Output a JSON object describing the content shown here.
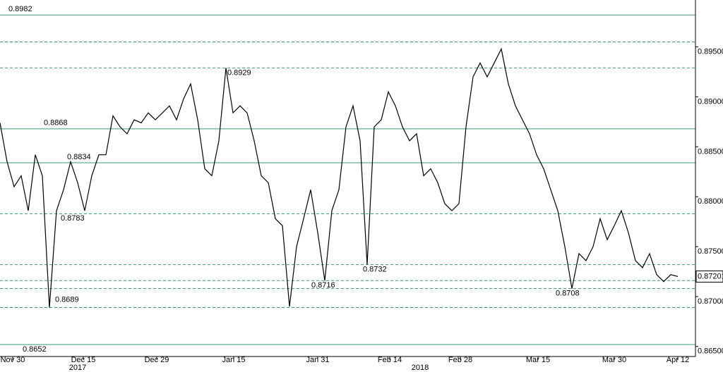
{
  "chart_data": {
    "type": "line",
    "series": [
      {
        "color": "#000000",
        "values": [
          0.8874,
          0.8835,
          0.881,
          0.8821,
          0.8786,
          0.8842,
          0.8821,
          0.8689,
          0.8786,
          0.8807,
          0.8835,
          0.8814,
          0.8786,
          0.8821,
          0.8842,
          0.8842,
          0.8881,
          0.887,
          0.8863,
          0.8877,
          0.8874,
          0.8884,
          0.8877,
          0.8884,
          0.8891,
          0.8877,
          0.8898,
          0.8913,
          0.8877,
          0.8828,
          0.8821,
          0.8856,
          0.8929,
          0.8884,
          0.8891,
          0.8884,
          0.8856,
          0.8821,
          0.8814,
          0.8778,
          0.8771,
          0.869,
          0.875,
          0.8778,
          0.8807,
          0.8764,
          0.8716,
          0.8786,
          0.8807,
          0.887,
          0.8891,
          0.8856,
          0.8732,
          0.887,
          0.8877,
          0.8905,
          0.8891,
          0.887,
          0.8856,
          0.8863,
          0.8821,
          0.8828,
          0.8814,
          0.8793,
          0.8786,
          0.8793,
          0.887,
          0.892,
          0.8934,
          0.892,
          0.8934,
          0.8948,
          0.8913,
          0.8891,
          0.8877,
          0.8863,
          0.8842,
          0.8828,
          0.8807,
          0.8786,
          0.875,
          0.8708,
          0.8743,
          0.8736,
          0.875,
          0.8778,
          0.8757,
          0.8771,
          0.8786,
          0.8764,
          0.8736,
          0.8729,
          0.8743,
          0.8722,
          0.8715,
          0.8722,
          0.87201
        ]
      }
    ],
    "xlim": [
      0,
      98.5
    ],
    "xticks": [
      {
        "value": 1.8,
        "label": "Nov 30"
      },
      {
        "value": 11.8,
        "label": "Dec 15"
      },
      {
        "value": 22.2,
        "label": "Dec 29"
      },
      {
        "value": 33.1,
        "label": "Jan 15"
      },
      {
        "value": 45,
        "label": "Jan 31"
      },
      {
        "value": 55.2,
        "label": "Feb 14"
      },
      {
        "value": 65.2,
        "label": "Feb 28"
      },
      {
        "value": 76.2,
        "label": "Mar 15"
      },
      {
        "value": 87,
        "label": "Mar 30"
      },
      {
        "value": 96,
        "label": "Apr 12"
      }
    ],
    "year_labels": [
      {
        "value": 11,
        "label": "2017"
      },
      {
        "value": 59.5,
        "label": "2018"
      }
    ],
    "ylim": [
      0.864,
      0.8997
    ],
    "yticks": [
      {
        "value": 0.865,
        "label": "0.86500"
      },
      {
        "value": 0.87,
        "label": "0.87000"
      },
      {
        "value": 0.875,
        "label": "0.87500"
      },
      {
        "value": 0.88,
        "label": "0.88000"
      },
      {
        "value": 0.885,
        "label": "0.88500"
      },
      {
        "value": 0.89,
        "label": "0.89000"
      },
      {
        "value": 0.895,
        "label": "0.89500"
      }
    ],
    "levels": [
      {
        "value": 0.8982,
        "style": "solid"
      },
      {
        "value": 0.8929,
        "style": "dashed"
      },
      {
        "value": 0.8868,
        "style": "solid"
      },
      {
        "value": 0.8834,
        "style": "solid"
      },
      {
        "value": 0.8783,
        "style": "dashed"
      },
      {
        "value": 0.8732,
        "style": "dashed"
      },
      {
        "value": 0.8716,
        "style": "dashed"
      },
      {
        "value": 0.8708,
        "style": "dashed"
      },
      {
        "value": 0.8689,
        "style": "dashed"
      },
      {
        "value": 0.8652,
        "style": "solid"
      }
    ],
    "unlabeled_levels": [
      {
        "value": 0.8955,
        "style": "dashed"
      }
    ],
    "level_color": "#3a9a6a"
  }
}
